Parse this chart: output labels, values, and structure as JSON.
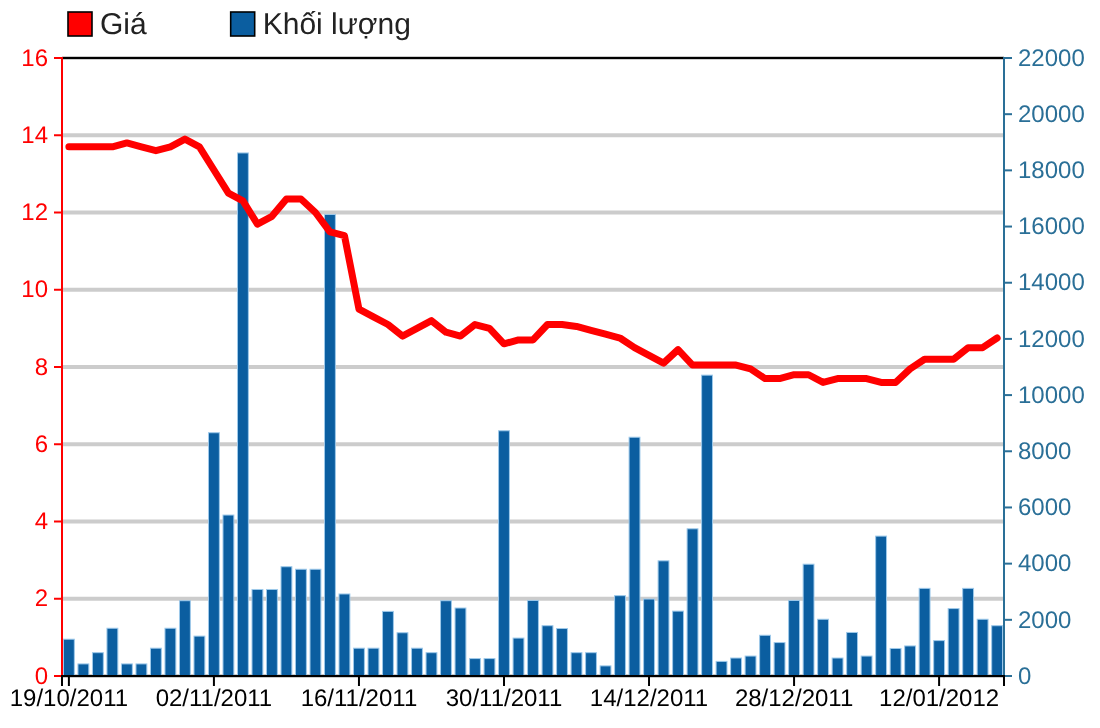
{
  "chart_data": {
    "type": "bar",
    "categories": [
      "19/10/2011",
      null,
      null,
      null,
      null,
      null,
      null,
      null,
      null,
      null,
      "02/11/2011",
      null,
      null,
      null,
      null,
      null,
      null,
      null,
      null,
      null,
      "16/11/2011",
      null,
      null,
      null,
      null,
      null,
      null,
      null,
      null,
      null,
      "30/11/2011",
      null,
      null,
      null,
      null,
      null,
      null,
      null,
      null,
      null,
      "14/12/2011",
      null,
      null,
      null,
      null,
      null,
      null,
      null,
      null,
      null,
      "28/12/2011",
      null,
      null,
      null,
      null,
      null,
      null,
      null,
      null,
      null,
      "12/01/2012",
      null,
      null,
      null,
      null
    ],
    "series": [
      {
        "name": "Khối lượng",
        "axis": "y2",
        "color": "#0b5ea0",
        "values": [
          1310,
          430,
          830,
          1700,
          430,
          430,
          990,
          1700,
          2680,
          1420,
          8660,
          5730,
          18620,
          3080,
          3080,
          3890,
          3800,
          3800,
          16430,
          2920,
          990,
          990,
          2300,
          1540,
          990,
          830,
          2680,
          2420,
          620,
          620,
          8730,
          1350,
          2690,
          1790,
          1690,
          830,
          830,
          360,
          2860,
          8500,
          2740,
          4100,
          2310,
          5240,
          10710,
          520,
          640,
          710,
          1450,
          1190,
          2690,
          3980,
          2020,
          640,
          1550,
          710,
          4980,
          980,
          1070,
          3120,
          1260,
          2400,
          3120,
          2020,
          1790
        ]
      },
      {
        "name": "Giá",
        "type": "line",
        "color": "#ff0000",
        "values": [
          13.7,
          13.7,
          13.7,
          13.7,
          13.8,
          13.7,
          13.6,
          13.7,
          13.9,
          13.7,
          13.1,
          12.5,
          12.3,
          11.7,
          11.9,
          12.35,
          12.35,
          12.0,
          11.5,
          11.4,
          9.5,
          9.3,
          9.1,
          8.8,
          9.0,
          9.2,
          8.9,
          8.8,
          9.1,
          9.0,
          8.6,
          8.7,
          8.7,
          9.1,
          9.1,
          9.05,
          8.95,
          8.85,
          8.75,
          8.5,
          8.3,
          8.1,
          8.45,
          8.05,
          8.05,
          8.05,
          8.05,
          7.95,
          7.7,
          7.7,
          7.8,
          7.8,
          7.6,
          7.7,
          7.7,
          7.7,
          7.6,
          7.6,
          7.95,
          8.2,
          8.2,
          8.2,
          8.5,
          8.5,
          8.75
        ]
      }
    ],
    "ylim": [
      0,
      16
    ],
    "yticks": [
      0,
      2,
      4,
      6,
      8,
      10,
      12,
      14,
      16
    ],
    "y2lim": [
      0,
      22000
    ],
    "y2ticks": [
      0,
      2000,
      4000,
      6000,
      8000,
      10000,
      12000,
      14000,
      16000,
      18000,
      20000,
      22000
    ],
    "grid": "y",
    "legend": "top left",
    "marker": "none",
    "line_style": "solid"
  }
}
